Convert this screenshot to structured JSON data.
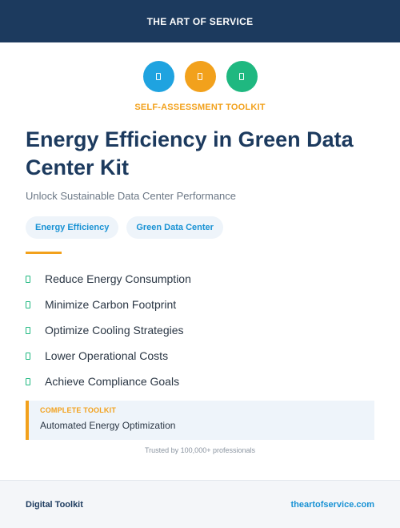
{
  "header": {
    "brand": "THE ART OF SERVICE"
  },
  "icons": [
    {
      "name": "document-icon",
      "color": "#1fa3e0"
    },
    {
      "name": "document-icon",
      "color": "#f2a11c"
    },
    {
      "name": "document-icon",
      "color": "#1fb880"
    }
  ],
  "hero": {
    "kicker": "SELF-ASSESSMENT TOOLKIT",
    "title": "Energy Efficiency in Green Data Center Kit",
    "subtitle": "Unlock Sustainable Data Center Performance"
  },
  "tags": [
    "Energy Efficiency",
    "Green Data Center"
  ],
  "features": [
    "Reduce Energy Consumption",
    "Minimize Carbon Footprint",
    "Optimize Cooling Strategies",
    "Lower Operational Costs",
    "Achieve Compliance Goals"
  ],
  "callout": {
    "label": "COMPLETE TOOLKIT",
    "text": "Automated Energy Optimization"
  },
  "trusted": "Trusted by 100,000+ professionals",
  "footer": {
    "left": "Digital Toolkit",
    "right": "theartofservice.com"
  },
  "colors": {
    "navy": "#1c3a5e",
    "accent_orange": "#f2a11c",
    "accent_blue": "#1992d4",
    "accent_green": "#1fb880"
  }
}
